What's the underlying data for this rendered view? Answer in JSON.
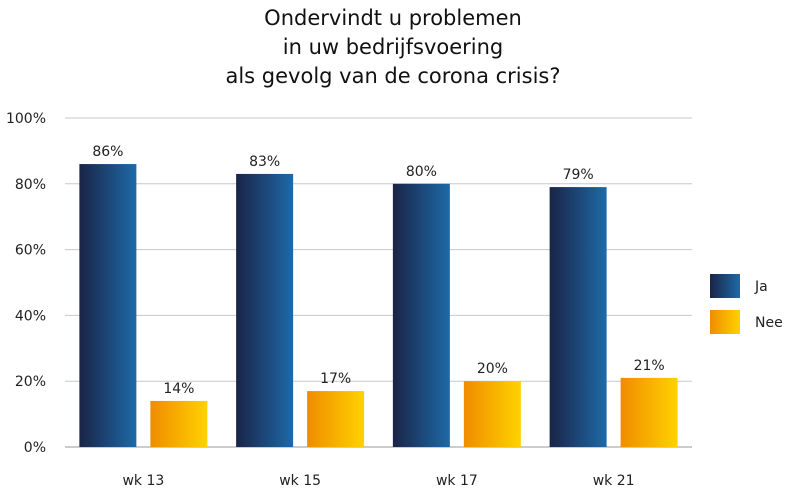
{
  "chart_data": {
    "type": "bar",
    "title_lines": [
      "Ondervindt u problemen",
      "in uw bedrijfsvoering",
      "als gevolg van de corona crisis?"
    ],
    "categories": [
      "wk 13",
      "wk 15",
      "wk 17",
      "wk 21"
    ],
    "series": [
      {
        "name": "Ja",
        "values": [
          86,
          83,
          80,
          79
        ],
        "labels": [
          "86%",
          "83%",
          "80%",
          "79%"
        ],
        "color_dark": "#1a2447",
        "color_light": "#1e6aa8"
      },
      {
        "name": "Nee",
        "values": [
          14,
          17,
          20,
          21
        ],
        "labels": [
          "14%",
          "17%",
          "20%",
          "21%"
        ],
        "color_dark": "#f08c00",
        "color_light": "#ffd200"
      }
    ],
    "ylim": [
      0,
      100
    ],
    "yticks": [
      0,
      20,
      40,
      60,
      80,
      100
    ],
    "ytick_labels": [
      "0%",
      "20%",
      "40%",
      "60%",
      "80%",
      "100%"
    ],
    "grid": true,
    "legend_position": "right"
  }
}
